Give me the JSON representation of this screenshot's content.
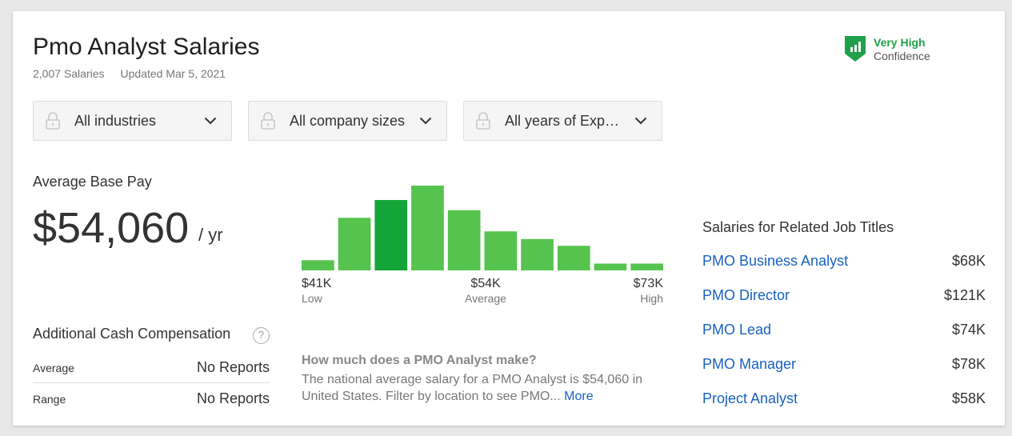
{
  "header": {
    "title": "Pmo Analyst Salaries",
    "salaries_count": "2,007 Salaries",
    "updated": "Updated Mar 5, 2021"
  },
  "confidence": {
    "level": "Very High",
    "label": "Confidence",
    "color": "#20a04a",
    "icon": "shield-bar-chart-icon"
  },
  "filters": [
    {
      "label": "All industries",
      "icon": "lock-icon"
    },
    {
      "label": "All company sizes",
      "icon": "lock-icon"
    },
    {
      "label": "All years of Exp…",
      "icon": "lock-icon"
    }
  ],
  "average_pay": {
    "label": "Average Base Pay",
    "value": "$54,060",
    "unit": "/ yr"
  },
  "histogram": {
    "low_value": "$41K",
    "low_label": "Low",
    "avg_value": "$54K",
    "avg_label": "Average",
    "high_value": "$73K",
    "high_label": "High",
    "bar_color": "#56c34e",
    "highlight_color": "#13a538"
  },
  "chart_data": {
    "type": "bar",
    "values": [
      0.12,
      0.62,
      0.83,
      1.0,
      0.71,
      0.46,
      0.37,
      0.29,
      0.08,
      0.08
    ],
    "highlight_index": 2,
    "xlabel": "",
    "ylabel": ""
  },
  "additional_cash": {
    "title": "Additional Cash Compensation",
    "help_icon": "?",
    "rows": [
      {
        "key": "Average",
        "value": "No Reports"
      },
      {
        "key": "Range",
        "value": "No Reports"
      }
    ]
  },
  "faq": {
    "question": "How much does a PMO Analyst make?",
    "answer": "The national average salary for a PMO Analyst is $54,060 in United States. Filter by location to see PMO...",
    "more": "More"
  },
  "related": {
    "title": "Salaries for Related Job Titles",
    "items": [
      {
        "job": "PMO Business Analyst",
        "salary": "$68K"
      },
      {
        "job": "PMO Director",
        "salary": "$121K"
      },
      {
        "job": "PMO Lead",
        "salary": "$74K"
      },
      {
        "job": "PMO Manager",
        "salary": "$78K"
      },
      {
        "job": "Project Analyst",
        "salary": "$58K"
      }
    ]
  }
}
